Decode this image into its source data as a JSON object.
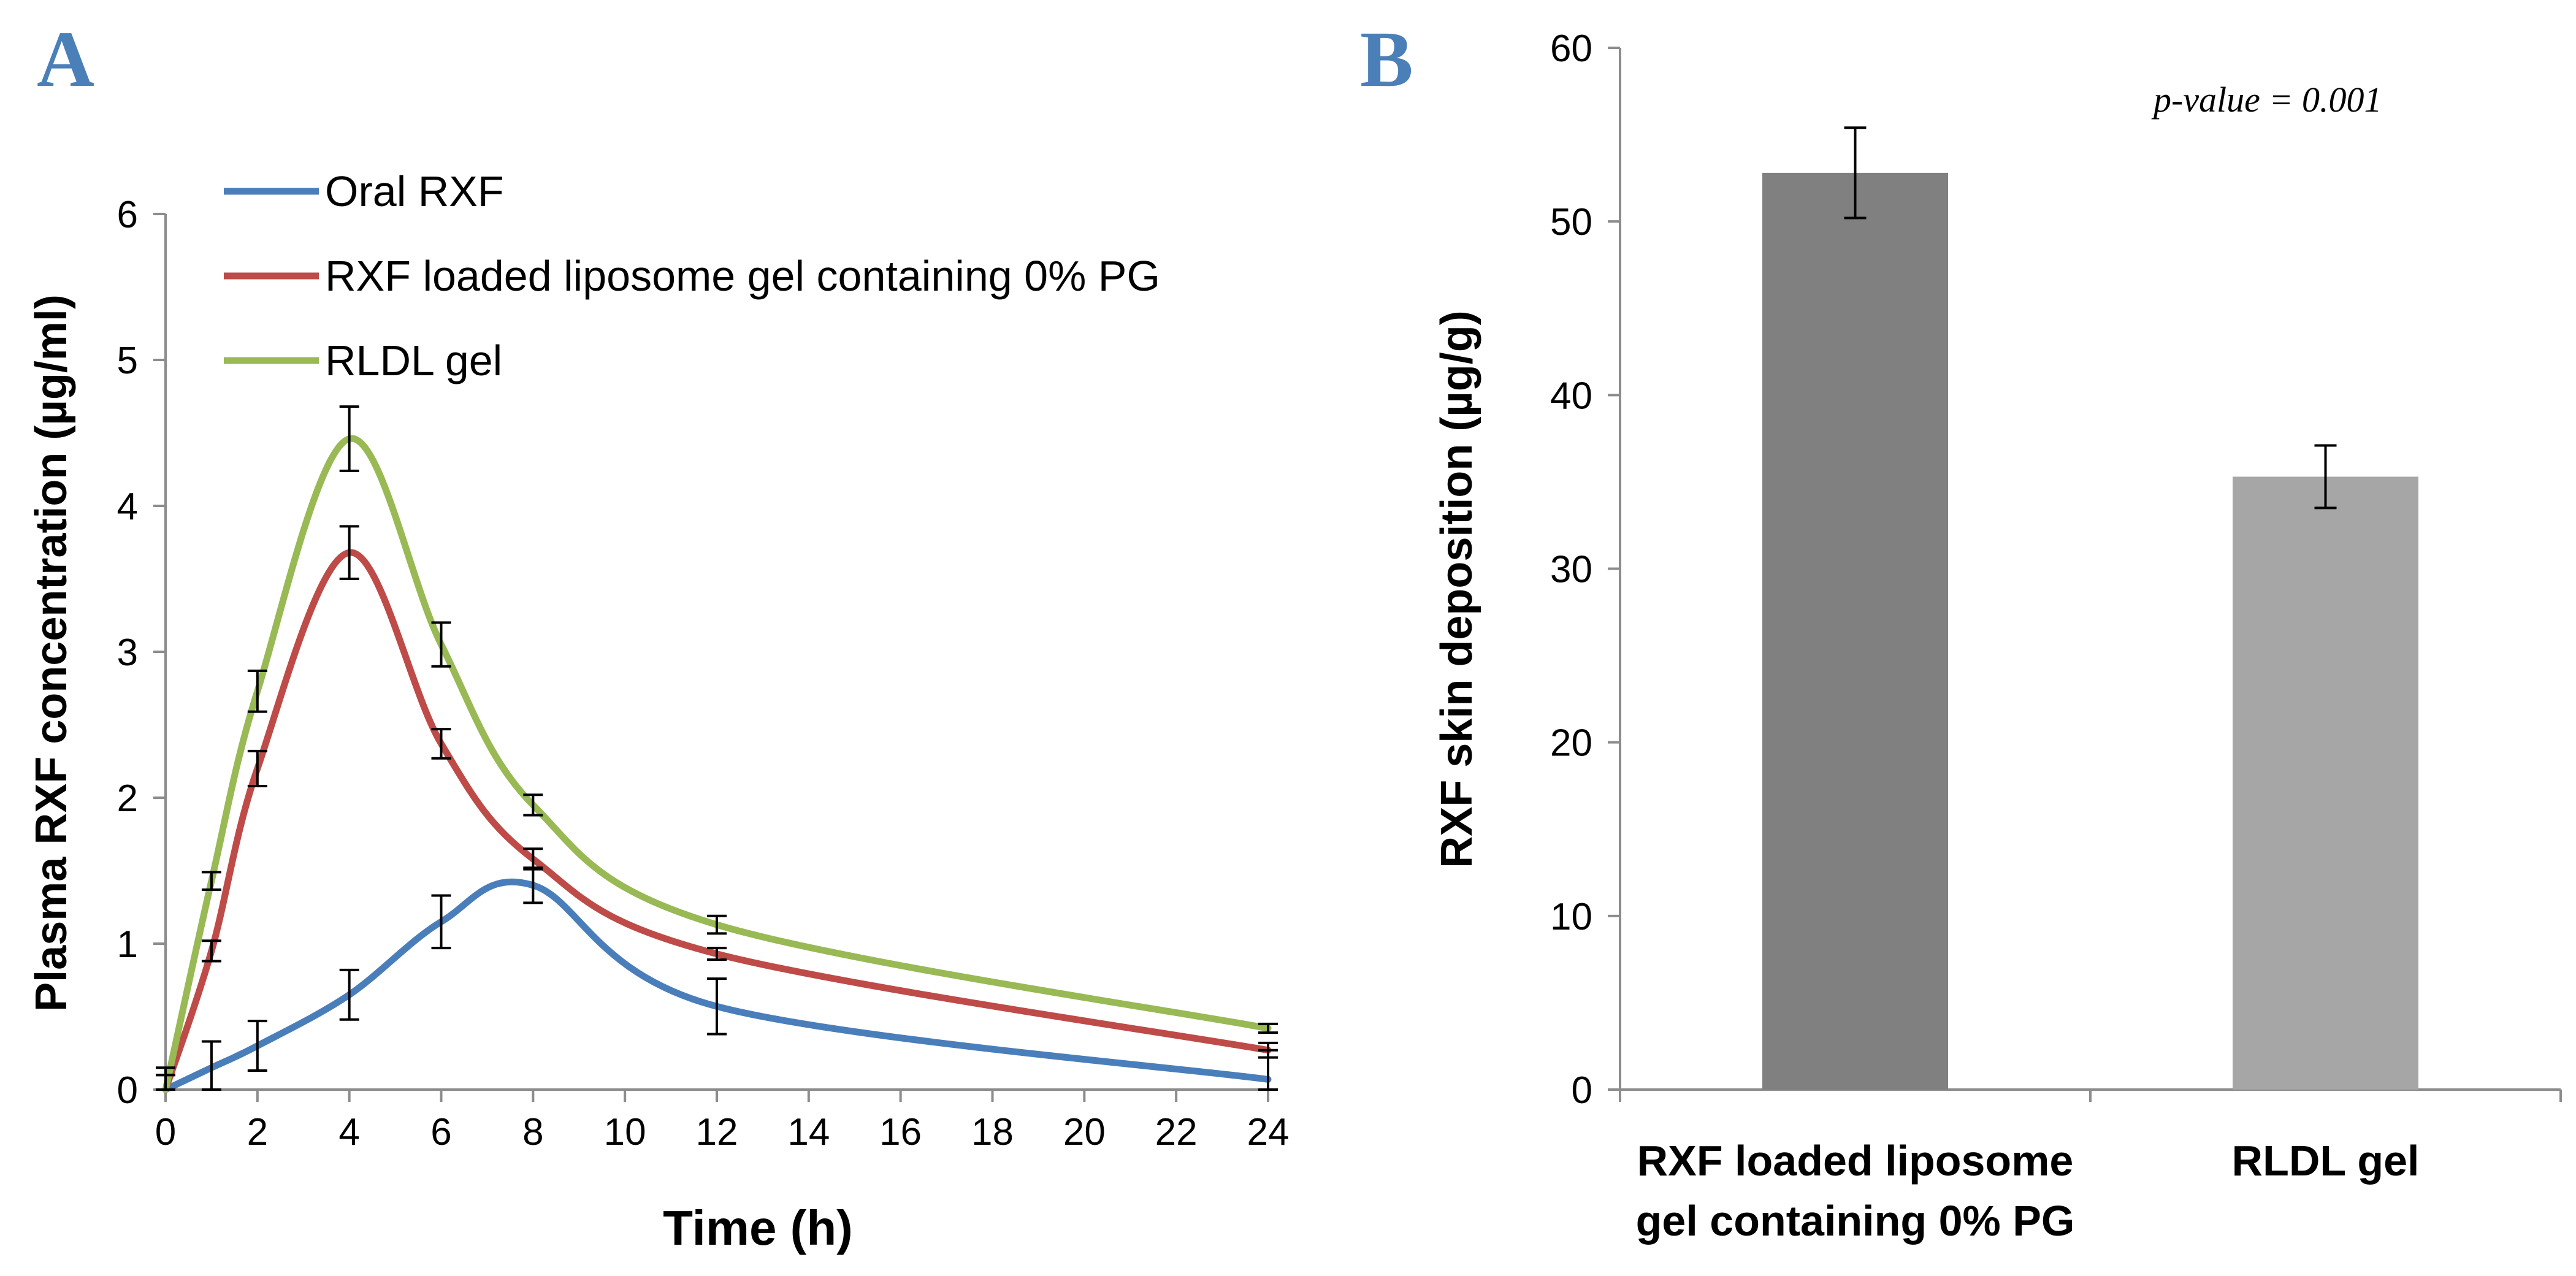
{
  "chart_data": [
    {
      "panel": "A",
      "type": "line",
      "title": "",
      "xlabel": "Time (h)",
      "ylabel": "Plasma RXF concentration (µg/ml)",
      "xlim": [
        0,
        24
      ],
      "ylim": [
        0,
        6
      ],
      "xticks": [
        0,
        2,
        4,
        6,
        8,
        10,
        12,
        14,
        16,
        18,
        20,
        22,
        24
      ],
      "yticks": [
        0,
        1,
        2,
        3,
        4,
        5,
        6
      ],
      "grid": false,
      "legend_position": "top-left",
      "series": [
        {
          "name": "Oral RXF",
          "color": "#4a7ebb",
          "x": [
            0,
            1,
            2,
            4,
            6,
            8,
            12,
            24
          ],
          "values": [
            0,
            0.15,
            0.3,
            0.65,
            1.15,
            1.4,
            0.57,
            0.07
          ],
          "errors": [
            0.15,
            0.18,
            0.17,
            0.17,
            0.18,
            0.12,
            0.19,
            0.2
          ]
        },
        {
          "name": "RXF loaded liposome gel containing 0% PG",
          "color": "#be4b48",
          "x": [
            0,
            1,
            2,
            4,
            6,
            8,
            12,
            24
          ],
          "values": [
            0,
            0.95,
            2.2,
            3.68,
            2.37,
            1.58,
            0.93,
            0.27
          ],
          "errors": [
            0.1,
            0.07,
            0.12,
            0.18,
            0.1,
            0.07,
            0.04,
            0.05
          ]
        },
        {
          "name": "RLDL gel",
          "color": "#98b954",
          "x": [
            0,
            1,
            2,
            4,
            6,
            8,
            12,
            24
          ],
          "values": [
            0,
            1.43,
            2.73,
            4.46,
            3.05,
            1.95,
            1.13,
            0.42
          ],
          "errors": [
            0.1,
            0.06,
            0.14,
            0.22,
            0.15,
            0.07,
            0.06,
            0.03
          ]
        }
      ]
    },
    {
      "panel": "B",
      "type": "bar",
      "title": "",
      "xlabel": "",
      "ylabel": "RXF skin deposition (µg/g)",
      "ylim": [
        0,
        60
      ],
      "yticks": [
        0,
        10,
        20,
        30,
        40,
        50,
        60
      ],
      "grid": false,
      "annotation": "p-value = 0.001",
      "categories": [
        "RXF loaded liposome gel containing 0% PG",
        "RLDL gel"
      ],
      "category_lines": [
        [
          "RXF loaded liposome",
          "gel containing 0% PG"
        ],
        [
          "RLDL gel"
        ]
      ],
      "values": [
        52.8,
        35.3
      ],
      "errors": [
        2.6,
        1.8
      ],
      "colors": [
        "#808080",
        "#a6a6a6"
      ]
    }
  ]
}
